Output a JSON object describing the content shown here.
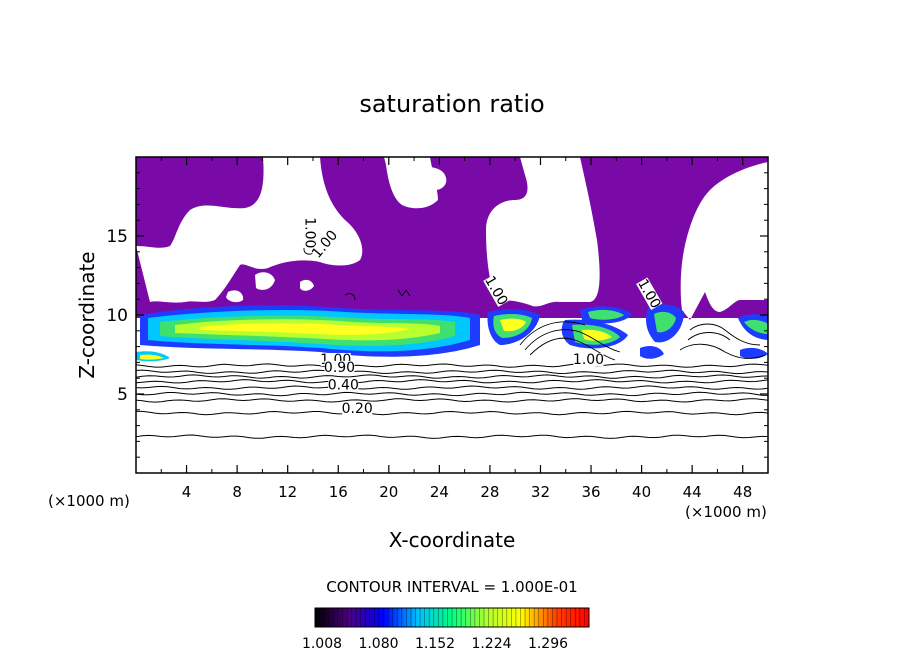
{
  "chart_data": {
    "type": "heatmap",
    "title": "saturation ratio",
    "xlabel": "X-coordinate",
    "ylabel": "Z-coordinate",
    "x_unit": "(×1000 m)",
    "x_unit_right": "(×1000 m)",
    "xlim": [
      0,
      50
    ],
    "ylim": [
      0,
      20
    ],
    "x_ticks": [
      "4",
      "8",
      "12",
      "16",
      "20",
      "24",
      "28",
      "32",
      "36",
      "40",
      "44",
      "48"
    ],
    "y_ticks": [
      "5",
      "10",
      "15"
    ],
    "contour_interval_text": "CONTOUR INTERVAL = 1.000E-01",
    "colorbar": {
      "labels": [
        "1.008",
        "1.080",
        "1.152",
        "1.224",
        "1.296"
      ],
      "colors": [
        "#000000",
        "#4b0082",
        "#0000ff",
        "#00bfff",
        "#00ff7f",
        "#adff2f",
        "#ffff00",
        "#ff4500",
        "#ff0000"
      ]
    },
    "contour_labels": [
      {
        "text": "1.00",
        "x": 13.4,
        "z": 15.2
      },
      {
        "text": "1.00",
        "x": 15.2,
        "z": 14.3
      },
      {
        "text": "1.00",
        "x": 28.2,
        "z": 11.4
      },
      {
        "text": "1.00",
        "x": 40.3,
        "z": 11.2
      },
      {
        "text": "1.00",
        "x": 15.8,
        "z": 6.9
      },
      {
        "text": "0.90",
        "x": 16.1,
        "z": 6.4
      },
      {
        "text": "0.40",
        "x": 16.4,
        "z": 5.3
      },
      {
        "text": "1.00",
        "x": 35.8,
        "z": 6.9
      },
      {
        "text": "0.20",
        "x": 17.5,
        "z": 3.8
      }
    ],
    "contour_levels_below_cloud": [
      0.2,
      0.3,
      0.4,
      0.5,
      0.6,
      0.7,
      0.8,
      0.9,
      1.0
    ],
    "colors": {
      "undersaturated_region": "#7a0aa8",
      "contour_line": "#000000"
    }
  }
}
